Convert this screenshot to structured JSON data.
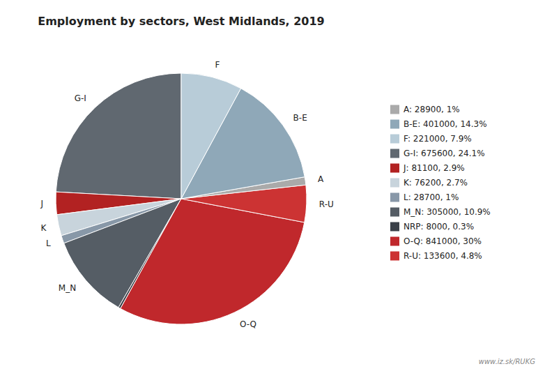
{
  "chart_data": {
    "type": "pie",
    "title": "Employment by sectors, West Midlands, 2019",
    "categories": [
      "G-I",
      "J",
      "K",
      "L",
      "M_N",
      null,
      "O-Q",
      "R-U",
      "A",
      "B-E",
      "F"
    ],
    "values": [
      675600,
      81100,
      76200,
      28700,
      305000,
      8000,
      841000,
      133600,
      28900,
      401000,
      221000
    ],
    "colors": [
      "#606870",
      "#b22222",
      "#c8d4dc",
      "#8898a8",
      "#555d65",
      "#3a4048",
      "#c0282c",
      "#cc3333",
      "#aaaaaa",
      "#8fa8b8",
      "#b8ccd8"
    ],
    "legend": "right",
    "legend_labels": [
      "A: 28900, 1%",
      "B-E: 401000, 14.3%",
      "F: 221000, 7.9%",
      "G-I: 675600, 24.1%",
      "J: 81100, 2.9%",
      "K: 76200, 2.7%",
      "L: 28700, 1%",
      "M_N: 305000, 10.9%",
      "NRP: 8000, 0.3%",
      "O-Q: 841000, 30%",
      "R-U: 133600, 4.8%"
    ],
    "legend_colors": [
      "#aaaaaa",
      "#8fa8b8",
      "#b8ccd8",
      "#606870",
      "#b22222",
      "#c8d4dc",
      "#8898a8",
      "#555d65",
      "#3a4048",
      "#c0282c",
      "#cc3333"
    ],
    "annotations": [
      "www.iz.sk/RUKG"
    ]
  }
}
